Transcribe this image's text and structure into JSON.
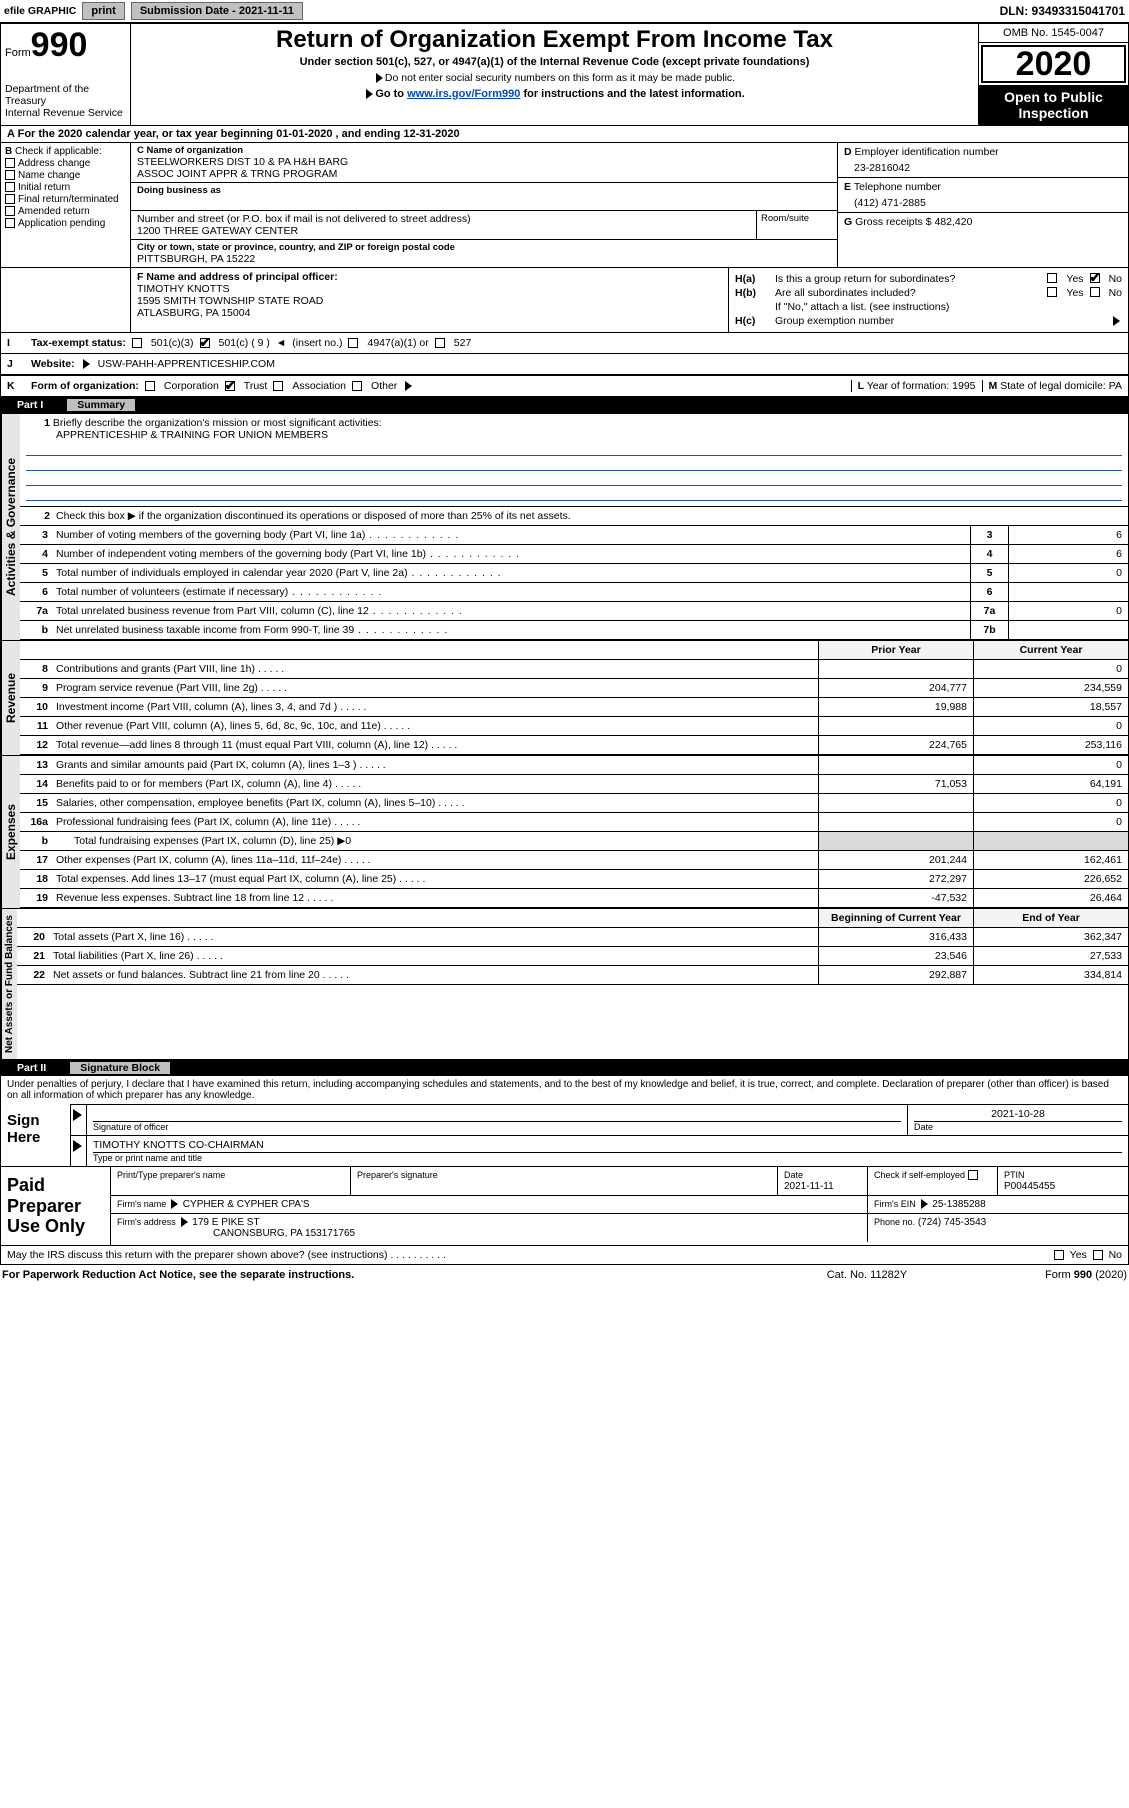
{
  "colors": {
    "black": "#000000",
    "white": "#ffffff",
    "header_grey": "#c0c0c0",
    "side_grey": "#e6e6e6",
    "cell_grey": "#d9d9d9",
    "link_blue": "#0047c2",
    "rule_blue": "#2050a0"
  },
  "fonts": {
    "base_pt": 10.5,
    "title_pt": 24,
    "form_num_pt": 34,
    "year_pt": 34
  },
  "topbar": {
    "efile": "efile GRAPHIC",
    "print": "print",
    "subdate_label": "Submission Date - 2021-11-11",
    "dln": "DLN: 93493315041701"
  },
  "header": {
    "form_prefix": "Form",
    "form_num": "990",
    "dept1": "Department of the Treasury",
    "dept2": "Internal Revenue Service",
    "title": "Return of Organization Exempt From Income Tax",
    "sub1": "Under section 501(c), 527, or 4947(a)(1) of the Internal Revenue Code (except private foundations)",
    "sub2": "Do not enter social security numbers on this form as it may be made public.",
    "sub3_pre": "Go to ",
    "sub3_link": "www.irs.gov/Form990",
    "sub3_post": " for instructions and the latest information.",
    "omb": "OMB No. 1545-0047",
    "year": "2020",
    "open": "Open to Public Inspection"
  },
  "lineA": "For the 2020 calendar year, or tax year beginning 01-01-2020   , and ending 12-31-2020",
  "boxB": {
    "label": "Check if applicable:",
    "items": [
      "Address change",
      "Name change",
      "Initial return",
      "Final return/terminated",
      "Amended return",
      "Application pending"
    ]
  },
  "boxC": {
    "name_label": "Name of organization",
    "name1": "STEELWORKERS DIST 10 & PA H&H BARG",
    "name2": "ASSOC JOINT APPR & TRNG PROGRAM",
    "dba_label": "Doing business as",
    "addr_label": "Number and street (or P.O. box if mail is not delivered to street address)",
    "room_label": "Room/suite",
    "addr": "1200 THREE GATEWAY CENTER",
    "city_label": "City or town, state or province, country, and ZIP or foreign postal code",
    "city": "PITTSBURGH, PA  15222"
  },
  "boxD": {
    "label": "Employer identification number",
    "val": "23-2816042"
  },
  "boxE": {
    "label": "Telephone number",
    "val": "(412) 471-2885"
  },
  "boxG": {
    "label": "Gross receipts $",
    "val": "482,420"
  },
  "boxF": {
    "label": "Name and address of principal officer:",
    "name": "TIMOTHY KNOTTS",
    "addr1": "1595 SMITH TOWNSHIP STATE ROAD",
    "addr2": "ATLASBURG, PA  15004"
  },
  "boxH": {
    "a_label": "Is this a group return for subordinates?",
    "a_yes": "Yes",
    "a_no": "No",
    "a_checked": "no",
    "b_label": "Are all subordinates included?",
    "b_note": "If \"No,\" attach a list. (see instructions)",
    "c_label": "Group exemption number"
  },
  "boxI": {
    "label": "Tax-exempt status:",
    "opts": [
      "501(c)(3)",
      "501(c) ( 9 )",
      "4947(a)(1) or",
      "527"
    ],
    "insert": "(insert no.)",
    "checked_idx": 1,
    "arrow_note": "◄"
  },
  "boxJ": {
    "label": "Website:",
    "val": "USW-PAHH-APPRENTICESHIP.COM"
  },
  "boxK": {
    "label": "Form of organization:",
    "opts": [
      "Corporation",
      "Trust",
      "Association",
      "Other"
    ],
    "checked_idx": 1
  },
  "boxL": {
    "label": "Year of formation:",
    "val": "1995"
  },
  "boxM": {
    "label": "State of legal domicile:",
    "val": "PA"
  },
  "partI": {
    "tab": "Part I",
    "title": "Summary",
    "line1_label": "Briefly describe the organization's mission or most significant activities:",
    "line1_val": "APPRENTICESHIP & TRAINING FOR UNION MEMBERS",
    "line2": "Check this box ▶ if the organization discontinued its operations or disposed of more than 25% of its net assets.",
    "rows_top": [
      {
        "n": "3",
        "desc": "Number of voting members of the governing body (Part VI, line 1a)",
        "cell": "3",
        "val": "6"
      },
      {
        "n": "4",
        "desc": "Number of independent voting members of the governing body (Part VI, line 1b)",
        "cell": "4",
        "val": "6"
      },
      {
        "n": "5",
        "desc": "Total number of individuals employed in calendar year 2020 (Part V, line 2a)",
        "cell": "5",
        "val": "0"
      },
      {
        "n": "6",
        "desc": "Total number of volunteers (estimate if necessary)",
        "cell": "6",
        "val": ""
      },
      {
        "n": "7a",
        "desc": "Total unrelated business revenue from Part VIII, column (C), line 12",
        "cell": "7a",
        "val": "0"
      },
      {
        "n": "b",
        "desc": "Net unrelated business taxable income from Form 990-T, line 39",
        "cell": "7b",
        "val": ""
      }
    ],
    "col_headers": {
      "prior": "Prior Year",
      "current": "Current Year"
    },
    "revenue": [
      {
        "n": "8",
        "desc": "Contributions and grants (Part VIII, line 1h)",
        "v1": "",
        "v2": "0"
      },
      {
        "n": "9",
        "desc": "Program service revenue (Part VIII, line 2g)",
        "v1": "204,777",
        "v2": "234,559"
      },
      {
        "n": "10",
        "desc": "Investment income (Part VIII, column (A), lines 3, 4, and 7d )",
        "v1": "19,988",
        "v2": "18,557"
      },
      {
        "n": "11",
        "desc": "Other revenue (Part VIII, column (A), lines 5, 6d, 8c, 9c, 10c, and 11e)",
        "v1": "",
        "v2": "0"
      },
      {
        "n": "12",
        "desc": "Total revenue—add lines 8 through 11 (must equal Part VIII, column (A), line 12)",
        "v1": "224,765",
        "v2": "253,116"
      }
    ],
    "expenses": [
      {
        "n": "13",
        "desc": "Grants and similar amounts paid (Part IX, column (A), lines 1–3 )",
        "v1": "",
        "v2": "0"
      },
      {
        "n": "14",
        "desc": "Benefits paid to or for members (Part IX, column (A), line 4)",
        "v1": "71,053",
        "v2": "64,191"
      },
      {
        "n": "15",
        "desc": "Salaries, other compensation, employee benefits (Part IX, column (A), lines 5–10)",
        "v1": "",
        "v2": "0"
      },
      {
        "n": "16a",
        "desc": "Professional fundraising fees (Part IX, column (A), line 11e)",
        "v1": "",
        "v2": "0"
      },
      {
        "n": "b",
        "desc": "Total fundraising expenses (Part IX, column (D), line 25) ▶0",
        "grey": true
      },
      {
        "n": "17",
        "desc": "Other expenses (Part IX, column (A), lines 11a–11d, 11f–24e)",
        "v1": "201,244",
        "v2": "162,461"
      },
      {
        "n": "18",
        "desc": "Total expenses. Add lines 13–17 (must equal Part IX, column (A), line 25)",
        "v1": "272,297",
        "v2": "226,652"
      },
      {
        "n": "19",
        "desc": "Revenue less expenses. Subtract line 18 from line 12",
        "v1": "-47,532",
        "v2": "26,464"
      }
    ],
    "net_headers": {
      "beg": "Beginning of Current Year",
      "end": "End of Year"
    },
    "net": [
      {
        "n": "20",
        "desc": "Total assets (Part X, line 16)",
        "v1": "316,433",
        "v2": "362,347"
      },
      {
        "n": "21",
        "desc": "Total liabilities (Part X, line 26)",
        "v1": "23,546",
        "v2": "27,533"
      },
      {
        "n": "22",
        "desc": "Net assets or fund balances. Subtract line 21 from line 20",
        "v1": "292,887",
        "v2": "334,814"
      }
    ],
    "side_labels": {
      "gov": "Activities & Governance",
      "rev": "Revenue",
      "exp": "Expenses",
      "net": "Net Assets or Fund Balances"
    }
  },
  "partII": {
    "tab": "Part II",
    "title": "Signature Block",
    "declaration": "Under penalties of perjury, I declare that I have examined this return, including accompanying schedules and statements, and to the best of my knowledge and belief, it is true, correct, and complete. Declaration of preparer (other than officer) is based on all information of which preparer has any knowledge.",
    "sign_here": "Sign Here",
    "sig_of_officer": "Signature of officer",
    "date_label": "Date",
    "date_val": "2021-10-28",
    "name_title": "TIMOTHY KNOTTS  CO-CHAIRMAN",
    "type_label": "Type or print name and title",
    "paid": "Paid Preparer Use Only",
    "prep_name_label": "Print/Type preparer's name",
    "prep_sig_label": "Preparer's signature",
    "prep_date_label": "Date",
    "prep_date": "2021-11-11",
    "self_emp": "Check          if self-employed",
    "ptin_label": "PTIN",
    "ptin": "P00445455",
    "firm_name_label": "Firm's name",
    "firm_name": "CYPHER & CYPHER CPA'S",
    "firm_ein_label": "Firm's EIN",
    "firm_ein": "25-1385288",
    "firm_addr_label": "Firm's address",
    "firm_addr1": "179 E PIKE ST",
    "firm_addr2": "CANONSBURG, PA  153171765",
    "phone_label": "Phone no.",
    "phone": "(724) 745-3543",
    "discuss": "May the IRS discuss this return with the preparer shown above? (see instructions)",
    "yes": "Yes",
    "no": "No"
  },
  "footer": {
    "pra": "For Paperwork Reduction Act Notice, see the separate instructions.",
    "cat": "Cat. No. 11282Y",
    "form": "Form 990 (2020)"
  }
}
